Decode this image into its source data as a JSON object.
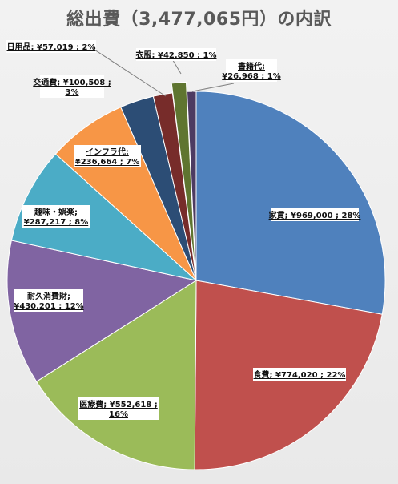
{
  "chart_data": {
    "type": "pie",
    "title": "総出費（3,477,065円）の内訳",
    "total": 3477065,
    "slices": [
      {
        "name": "家賃",
        "value": 969000,
        "percent": 28,
        "label": "家賃; ¥969,000 ; 28%",
        "color": "#4f81bd"
      },
      {
        "name": "食費",
        "value": 774020,
        "percent": 22,
        "label": "食費; ¥774,020 ; 22%",
        "color": "#c0504d"
      },
      {
        "name": "医療費",
        "value": 552618,
        "percent": 16,
        "label": "医療費; ¥552,618 ; 16%",
        "color": "#9bbb59"
      },
      {
        "name": "耐久消費財",
        "value": 430201,
        "percent": 12,
        "label": "耐久消費財; ¥430,201 ; 12%",
        "color": "#8064a2"
      },
      {
        "name": "趣味・娯楽",
        "value": 287217,
        "percent": 8,
        "label": "趣味・娯楽; ¥287,217 ; 8%",
        "color": "#4bacc6"
      },
      {
        "name": "インフラ代",
        "value": 236664,
        "percent": 7,
        "label": "インフラ代; ¥236,664 ; 7%",
        "color": "#f79646"
      },
      {
        "name": "交通費",
        "value": 100508,
        "percent": 3,
        "label": "交通費; ¥100,508 ; 3%",
        "color": "#2c4d75"
      },
      {
        "name": "日用品",
        "value": 57019,
        "percent": 2,
        "label": "日用品; ¥57,019 ; 2%",
        "color": "#772c2a"
      },
      {
        "name": "衣服",
        "value": 42850,
        "percent": 1,
        "label": "衣服; ¥42,850 ; 1%",
        "color": "#5f7530"
      },
      {
        "name": "書籍代",
        "value": 26968,
        "percent": 1,
        "label": "書籍代; ¥26,968 ; 1%",
        "color": "#4d3b62"
      }
    ]
  }
}
